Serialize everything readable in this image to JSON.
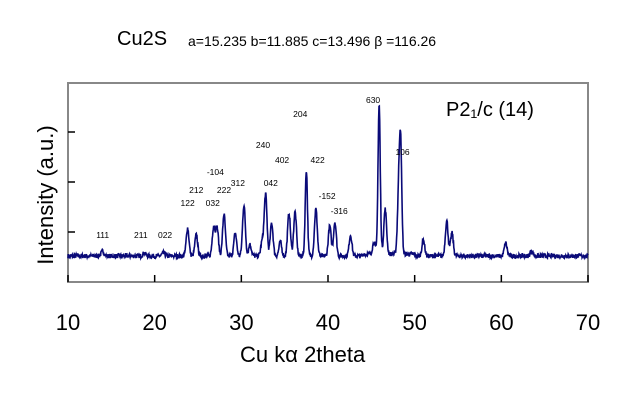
{
  "chart_data": {
    "type": "line",
    "title": "Cu2S",
    "subtitle": "a=15.235  b=11.885  c=13.496  β =116.26",
    "space_group": "P2₁/c (14)",
    "xlabel": "Cu kα   2theta",
    "ylabel": "Intensity (a.u.)",
    "xlim": [
      10,
      70
    ],
    "xticks": [
      10,
      20,
      30,
      40,
      50,
      60,
      70
    ],
    "ylim": [
      0,
      4
    ],
    "yticks": [
      1,
      2,
      3
    ],
    "grid": false,
    "line_color": "#0a0a78",
    "baseline": 0.52,
    "peaks": [
      {
        "x": 14.0,
        "y": 0.62
      },
      {
        "x": 18.8,
        "y": 0.58
      },
      {
        "x": 21.0,
        "y": 0.58
      },
      {
        "x": 23.8,
        "y": 1.08
      },
      {
        "x": 24.8,
        "y": 0.94
      },
      {
        "x": 26.8,
        "y": 1.1
      },
      {
        "x": 27.2,
        "y": 1.08
      },
      {
        "x": 28.0,
        "y": 1.36
      },
      {
        "x": 29.3,
        "y": 0.98
      },
      {
        "x": 30.3,
        "y": 1.54
      },
      {
        "x": 31.0,
        "y": 0.75
      },
      {
        "x": 32.4,
        "y": 0.8
      },
      {
        "x": 32.8,
        "y": 1.76
      },
      {
        "x": 33.5,
        "y": 1.18
      },
      {
        "x": 34.5,
        "y": 0.8
      },
      {
        "x": 35.5,
        "y": 1.38
      },
      {
        "x": 36.2,
        "y": 1.4
      },
      {
        "x": 37.5,
        "y": 2.24
      },
      {
        "x": 38.6,
        "y": 1.46
      },
      {
        "x": 40.2,
        "y": 1.12
      },
      {
        "x": 40.8,
        "y": 1.2
      },
      {
        "x": 42.6,
        "y": 0.94
      },
      {
        "x": 45.3,
        "y": 0.75
      },
      {
        "x": 45.9,
        "y": 3.5
      },
      {
        "x": 46.6,
        "y": 1.42
      },
      {
        "x": 48.2,
        "y": 2.0
      },
      {
        "x": 48.4,
        "y": 2.2
      },
      {
        "x": 51.0,
        "y": 0.84
      },
      {
        "x": 53.7,
        "y": 1.22
      },
      {
        "x": 54.3,
        "y": 0.98
      },
      {
        "x": 60.5,
        "y": 0.78
      },
      {
        "x": 63.5,
        "y": 0.62
      }
    ],
    "annotations": [
      {
        "text": "111",
        "x": 14.0,
        "y": 0.94
      },
      {
        "text": "211",
        "x": 18.4,
        "y": 0.94
      },
      {
        "text": "022",
        "x": 21.2,
        "y": 0.94
      },
      {
        "text": "122",
        "x": 23.8,
        "y": 1.58
      },
      {
        "text": "212",
        "x": 24.8,
        "y": 1.84
      },
      {
        "text": "032",
        "x": 26.7,
        "y": 1.58
      },
      {
        "text": "-104",
        "x": 27.0,
        "y": 2.2
      },
      {
        "text": "222",
        "x": 28.0,
        "y": 1.84
      },
      {
        "text": "312",
        "x": 29.6,
        "y": 1.98
      },
      {
        "text": "240",
        "x": 32.5,
        "y": 2.74
      },
      {
        "text": "042",
        "x": 33.4,
        "y": 1.98
      },
      {
        "text": "402",
        "x": 34.7,
        "y": 2.44
      },
      {
        "text": "204",
        "x": 36.8,
        "y": 3.36
      },
      {
        "text": "422",
        "x": 38.8,
        "y": 2.44
      },
      {
        "text": "-152",
        "x": 39.9,
        "y": 1.72
      },
      {
        "text": "-316",
        "x": 41.3,
        "y": 1.42
      },
      {
        "text": "630",
        "x": 45.2,
        "y": 3.64
      },
      {
        "text": "106",
        "x": 48.6,
        "y": 2.6
      }
    ]
  }
}
